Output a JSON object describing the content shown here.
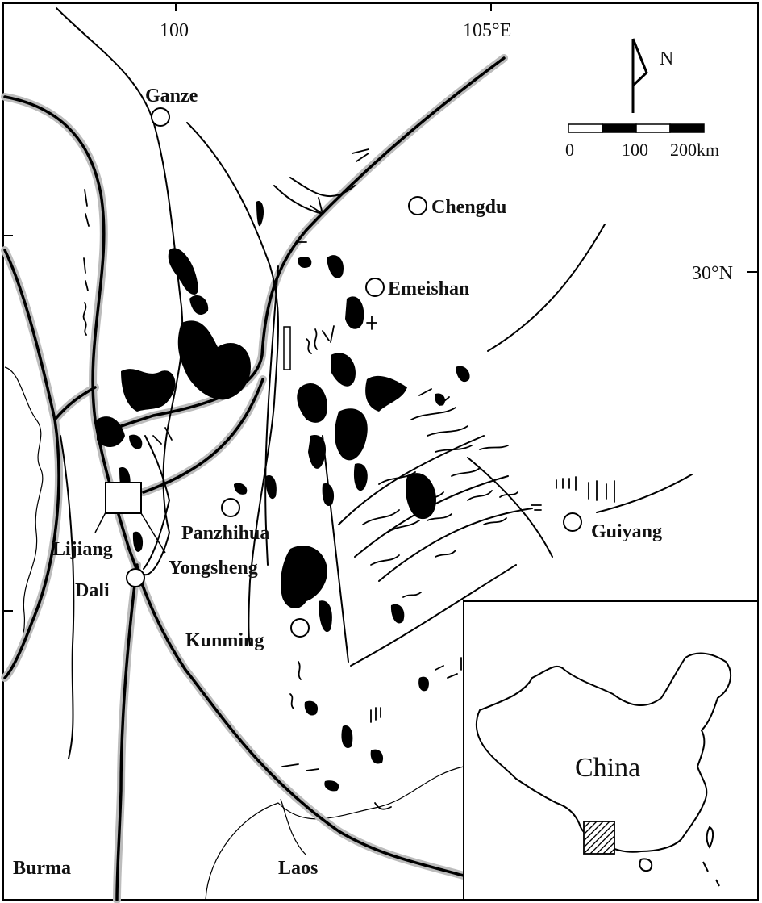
{
  "map": {
    "coords": {
      "lon_100": "100",
      "lon_105": "105°E",
      "lat_30": "30°N"
    },
    "north_arrow": {
      "label": "N"
    },
    "scale_bar": {
      "label_0": "0",
      "label_100": "100",
      "label_200": "200km"
    },
    "cities": {
      "ganze": "Ganze",
      "chengdu": "Chengdu",
      "emeishan": "Emeishan",
      "panzhihua": "Panzhihua",
      "yongsheng": "Yongsheng",
      "lijiang": "Lijiang",
      "dali": "Dali",
      "kunming": "Kunming",
      "guiyang": "Guiyang"
    },
    "countries": {
      "burma": "Burma",
      "laos": "Laos"
    },
    "inset": {
      "label": "China"
    }
  }
}
